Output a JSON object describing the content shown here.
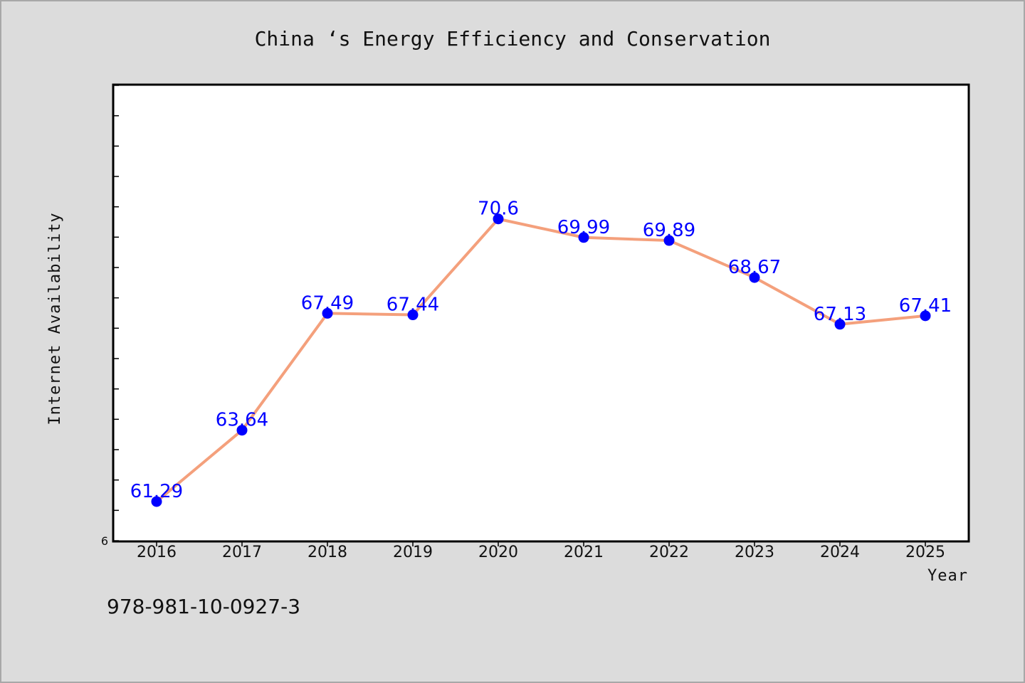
{
  "title": "China ‘s Energy Efficiency and Conservation",
  "footer_text": "978-981-10-0927-3",
  "colors": {
    "background": "#dcdcdc",
    "plot_background": "#ffffff",
    "line": "#f4a07c",
    "marker": "#0000ff",
    "label": "#0000ff"
  },
  "chart_data": {
    "type": "line",
    "title": "China ‘s Energy Efficiency and Conservation",
    "xlabel": "Year",
    "ylabel": "Internet Availability",
    "categories": [
      "2016",
      "2017",
      "2018",
      "2019",
      "2020",
      "2021",
      "2022",
      "2023",
      "2024",
      "2025"
    ],
    "series": [
      {
        "values": [
          61.29,
          63.64,
          67.49,
          67.44,
          70.6,
          69.99,
          69.89,
          68.67,
          67.13,
          67.41
        ],
        "labels": [
          "61.29",
          "63.64",
          "67.49",
          "67.44",
          "70.6",
          "69.99",
          "69.89",
          "68.67",
          "67.13",
          "67.41"
        ]
      }
    ],
    "ylim": [
      60,
      75
    ],
    "ytick_step": 1,
    "y_min_label": "6",
    "grid": false,
    "legend": "none"
  }
}
